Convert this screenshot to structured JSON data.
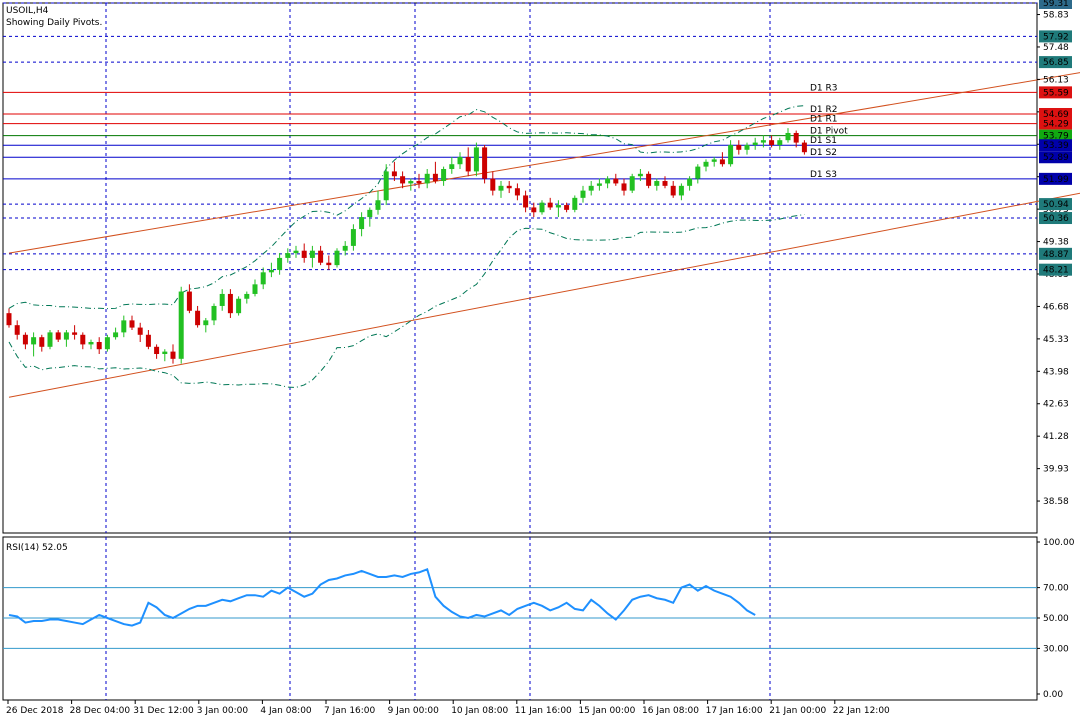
{
  "main_chart": {
    "symbol": "USOIL,H4",
    "subtitle": "Showing Daily Pivots."
  },
  "indicator": {
    "rsi_label": "RSI(14) 52.05"
  },
  "colors": {
    "background": "#ffffff",
    "grid": "#0000cc",
    "bull": "#22c022",
    "bear": "#cc0000",
    "resistance": "#e00000",
    "support": "#0000cc",
    "pivot": "#007700",
    "channel": "#d2501e",
    "bands": "#007755",
    "rsi_line": "#1e90ff",
    "rsi_levels": "#3399cc",
    "label_blue": "#2d6a8a",
    "label_teal": "#1f7a7a",
    "label_red": "#dd1111",
    "label_green": "#11aa11",
    "label_navy": "#0000aa"
  },
  "chart_data": {
    "type": "candlestick",
    "title": "USOIL,H4",
    "subtitle": "Showing Daily Pivots.",
    "price_axis": {
      "range": [
        37.25,
        59.31
      ],
      "ticks": [
        "58.83",
        "57.48",
        "56.13",
        "54.78",
        "53.43",
        "52.08",
        "50.73",
        "49.38",
        "48.03",
        "46.68",
        "45.33",
        "43.98",
        "42.63",
        "41.28",
        "39.93",
        "38.58"
      ]
    },
    "time_axis": {
      "labels": [
        "26 Dec 2018",
        "28 Dec 04:00",
        "31 Dec 12:00",
        "3 Jan 00:00",
        "4 Jan 08:00",
        "7 Jan 16:00",
        "9 Jan 00:00",
        "10 Jan 08:00",
        "11 Jan 16:00",
        "15 Jan 00:00",
        "16 Jan 08:00",
        "17 Jan 16:00",
        "21 Jan 00:00",
        "22 Jan 12:00"
      ]
    },
    "price_levels": [
      {
        "value": "59.31",
        "style": "dashed",
        "marker": "label_blue"
      },
      {
        "value": "57.92",
        "style": "dashed",
        "marker": "label_teal"
      },
      {
        "value": "56.85",
        "style": "dashed",
        "marker": "label_teal"
      },
      {
        "value": "55.59",
        "style": "solid",
        "marker": "label_red"
      },
      {
        "value": "54.69",
        "style": "solid",
        "marker": "label_red"
      },
      {
        "value": "54.29",
        "style": "solid",
        "marker": "label_red"
      },
      {
        "value": "53.79",
        "style": "solid",
        "marker": "label_green"
      },
      {
        "value": "53.39",
        "style": "solid",
        "marker": "label_navy"
      },
      {
        "value": "52.89",
        "style": "solid",
        "marker": "label_navy"
      },
      {
        "value": "51.99",
        "style": "solid",
        "marker": "label_navy"
      },
      {
        "value": "50.94",
        "style": "dashed",
        "marker": "label_teal"
      },
      {
        "value": "50.36",
        "style": "dashed",
        "marker": "label_teal"
      },
      {
        "value": "48.87",
        "style": "dashed",
        "marker": "label_teal"
      },
      {
        "value": "48.21",
        "style": "dashed",
        "marker": "label_teal"
      }
    ],
    "pivots": [
      {
        "name": "D1 R3",
        "value": 55.59,
        "color": "resistance"
      },
      {
        "name": "D1 R2",
        "value": 54.69,
        "color": "resistance"
      },
      {
        "name": "D1 R1",
        "value": 54.29,
        "color": "resistance"
      },
      {
        "name": "D1 Pivot",
        "value": 53.79,
        "color": "pivot"
      },
      {
        "name": "D1 S1",
        "value": 53.39,
        "color": "support"
      },
      {
        "name": "D1 S2",
        "value": 52.89,
        "color": "support"
      },
      {
        "name": "D1 S3",
        "value": 51.99,
        "color": "support"
      }
    ],
    "channel": [
      {
        "from": [
          0,
          48.9
        ],
        "to": [
          160,
          58.1
        ]
      },
      {
        "from": [
          0,
          42.9
        ],
        "to": [
          160,
          53.3
        ]
      }
    ],
    "candles": [
      [
        46.4,
        46.6,
        45.8,
        45.9
      ],
      [
        45.9,
        46.1,
        45.3,
        45.5
      ],
      [
        45.5,
        45.6,
        44.9,
        45.1
      ],
      [
        45.1,
        45.6,
        44.6,
        45.4
      ],
      [
        45.4,
        45.5,
        44.8,
        45.0
      ],
      [
        45.0,
        45.7,
        44.9,
        45.6
      ],
      [
        45.6,
        45.7,
        45.2,
        45.3
      ],
      [
        45.3,
        45.7,
        45.0,
        45.6
      ],
      [
        45.6,
        45.9,
        45.3,
        45.5
      ],
      [
        45.5,
        45.6,
        44.9,
        45.1
      ],
      [
        45.1,
        45.3,
        44.9,
        45.2
      ],
      [
        45.2,
        45.4,
        44.7,
        44.9
      ],
      [
        44.9,
        45.5,
        44.8,
        45.4
      ],
      [
        45.4,
        45.8,
        45.3,
        45.6
      ],
      [
        45.6,
        46.3,
        45.4,
        46.1
      ],
      [
        46.1,
        46.3,
        45.7,
        45.8
      ],
      [
        45.8,
        46.0,
        45.2,
        45.5
      ],
      [
        45.5,
        45.7,
        44.9,
        45.0
      ],
      [
        45.0,
        45.1,
        44.5,
        44.7
      ],
      [
        44.7,
        44.9,
        44.4,
        44.8
      ],
      [
        44.8,
        45.1,
        44.3,
        44.5
      ],
      [
        44.5,
        47.5,
        44.3,
        47.3
      ],
      [
        47.3,
        47.6,
        46.4,
        46.5
      ],
      [
        46.5,
        46.7,
        45.8,
        45.9
      ],
      [
        45.9,
        46.2,
        45.6,
        46.1
      ],
      [
        46.1,
        46.8,
        45.9,
        46.7
      ],
      [
        46.7,
        47.4,
        46.5,
        47.2
      ],
      [
        47.2,
        47.4,
        46.2,
        46.4
      ],
      [
        46.4,
        47.1,
        46.3,
        47.0
      ],
      [
        47.0,
        47.3,
        46.8,
        47.2
      ],
      [
        47.2,
        47.8,
        47.1,
        47.6
      ],
      [
        47.6,
        48.3,
        47.4,
        48.1
      ],
      [
        48.1,
        48.5,
        47.9,
        48.2
      ],
      [
        48.2,
        48.9,
        48.0,
        48.7
      ],
      [
        48.7,
        49.1,
        48.5,
        48.9
      ],
      [
        48.9,
        49.2,
        48.7,
        49.0
      ],
      [
        49.0,
        49.3,
        48.5,
        48.7
      ],
      [
        48.7,
        49.2,
        48.3,
        49.0
      ],
      [
        49.0,
        49.2,
        48.4,
        48.5
      ],
      [
        48.5,
        48.8,
        48.2,
        48.4
      ],
      [
        48.4,
        49.1,
        48.3,
        49.0
      ],
      [
        49.0,
        49.4,
        48.8,
        49.2
      ],
      [
        49.2,
        50.1,
        49.0,
        49.9
      ],
      [
        49.9,
        50.6,
        49.6,
        50.4
      ],
      [
        50.4,
        50.8,
        50.0,
        50.7
      ],
      [
        50.7,
        51.5,
        50.5,
        51.1
      ],
      [
        51.1,
        52.6,
        50.9,
        52.3
      ],
      [
        52.3,
        52.7,
        51.9,
        52.1
      ],
      [
        52.1,
        52.3,
        51.6,
        51.8
      ],
      [
        51.8,
        52.0,
        51.5,
        51.9
      ],
      [
        51.9,
        52.2,
        51.6,
        51.8
      ],
      [
        51.8,
        52.4,
        51.6,
        52.2
      ],
      [
        52.2,
        52.7,
        51.8,
        51.9
      ],
      [
        51.9,
        52.5,
        51.7,
        52.4
      ],
      [
        52.4,
        52.9,
        52.2,
        52.6
      ],
      [
        52.6,
        53.1,
        52.4,
        52.9
      ],
      [
        52.9,
        53.3,
        52.1,
        52.3
      ],
      [
        52.3,
        53.5,
        52.1,
        53.3
      ],
      [
        53.3,
        53.4,
        51.8,
        52.0
      ],
      [
        52.0,
        52.3,
        51.3,
        51.5
      ],
      [
        51.5,
        51.9,
        51.2,
        51.7
      ],
      [
        51.7,
        51.9,
        51.4,
        51.6
      ],
      [
        51.6,
        51.8,
        51.1,
        51.3
      ],
      [
        51.3,
        51.5,
        50.6,
        50.8
      ],
      [
        50.8,
        51.0,
        50.4,
        50.6
      ],
      [
        50.6,
        51.1,
        50.5,
        51.0
      ],
      [
        51.0,
        51.2,
        50.7,
        50.8
      ],
      [
        50.8,
        51.1,
        50.4,
        50.9
      ],
      [
        50.9,
        51.0,
        50.6,
        50.7
      ],
      [
        50.7,
        51.3,
        50.6,
        51.2
      ],
      [
        51.2,
        51.7,
        51.0,
        51.5
      ],
      [
        51.5,
        51.9,
        51.3,
        51.7
      ],
      [
        51.7,
        52.0,
        51.5,
        51.8
      ],
      [
        51.8,
        52.1,
        51.6,
        52.0
      ],
      [
        52.0,
        52.2,
        51.7,
        51.8
      ],
      [
        51.8,
        52.0,
        51.3,
        51.5
      ],
      [
        51.5,
        52.2,
        51.4,
        52.1
      ],
      [
        52.1,
        52.4,
        51.9,
        52.2
      ],
      [
        52.2,
        52.3,
        51.6,
        51.7
      ],
      [
        51.7,
        52.0,
        51.5,
        51.9
      ],
      [
        51.9,
        52.1,
        51.6,
        51.7
      ],
      [
        51.7,
        51.9,
        51.2,
        51.3
      ],
      [
        51.3,
        51.8,
        51.1,
        51.7
      ],
      [
        51.7,
        52.1,
        51.5,
        52.0
      ],
      [
        52.0,
        52.6,
        51.8,
        52.5
      ],
      [
        52.5,
        52.8,
        52.3,
        52.7
      ],
      [
        52.7,
        52.9,
        52.5,
        52.8
      ],
      [
        52.8,
        53.1,
        52.5,
        52.6
      ],
      [
        52.6,
        53.6,
        52.5,
        53.4
      ],
      [
        53.4,
        53.6,
        53.0,
        53.2
      ],
      [
        53.2,
        53.5,
        53.0,
        53.4
      ],
      [
        53.4,
        53.7,
        53.2,
        53.5
      ],
      [
        53.5,
        53.8,
        53.3,
        53.6
      ],
      [
        53.6,
        53.8,
        53.3,
        53.4
      ],
      [
        53.4,
        53.7,
        53.2,
        53.6
      ],
      [
        53.6,
        54.1,
        53.5,
        53.9
      ],
      [
        53.9,
        54.0,
        53.3,
        53.5
      ],
      [
        53.5,
        53.6,
        53.0,
        53.1
      ]
    ],
    "rsi": {
      "name": "RSI(14)",
      "last": 52.05,
      "range": [
        0,
        100
      ],
      "ticks": [
        "100.00",
        "70.00",
        "50.00",
        "30.00",
        "0.00"
      ],
      "levels": [
        70,
        50,
        30
      ],
      "values": [
        52,
        51,
        47,
        48,
        48,
        49,
        49,
        48,
        47,
        46,
        49,
        52,
        50,
        48,
        46,
        45,
        47,
        60,
        57,
        52,
        50,
        53,
        56,
        58,
        58,
        60,
        62,
        61,
        63,
        65,
        65,
        64,
        68,
        66,
        70,
        67,
        64,
        66,
        72,
        75,
        76,
        78,
        79,
        81,
        79,
        77,
        77,
        78,
        77,
        79,
        80,
        82,
        64,
        58,
        54,
        51,
        50,
        52,
        51,
        53,
        55,
        52,
        56,
        58,
        60,
        58,
        55,
        57,
        60,
        56,
        55,
        62,
        58,
        53,
        49,
        55,
        62,
        64,
        65,
        63,
        62,
        60,
        70,
        72,
        68,
        71,
        68,
        66,
        64,
        60,
        55,
        52
      ]
    },
    "grid_time_labels": [
      "28 Dec 04:00",
      "4 Jan 08:00",
      "9 Jan 00:00",
      "11 Jan 16:00",
      "21 Jan 00:00"
    ]
  }
}
